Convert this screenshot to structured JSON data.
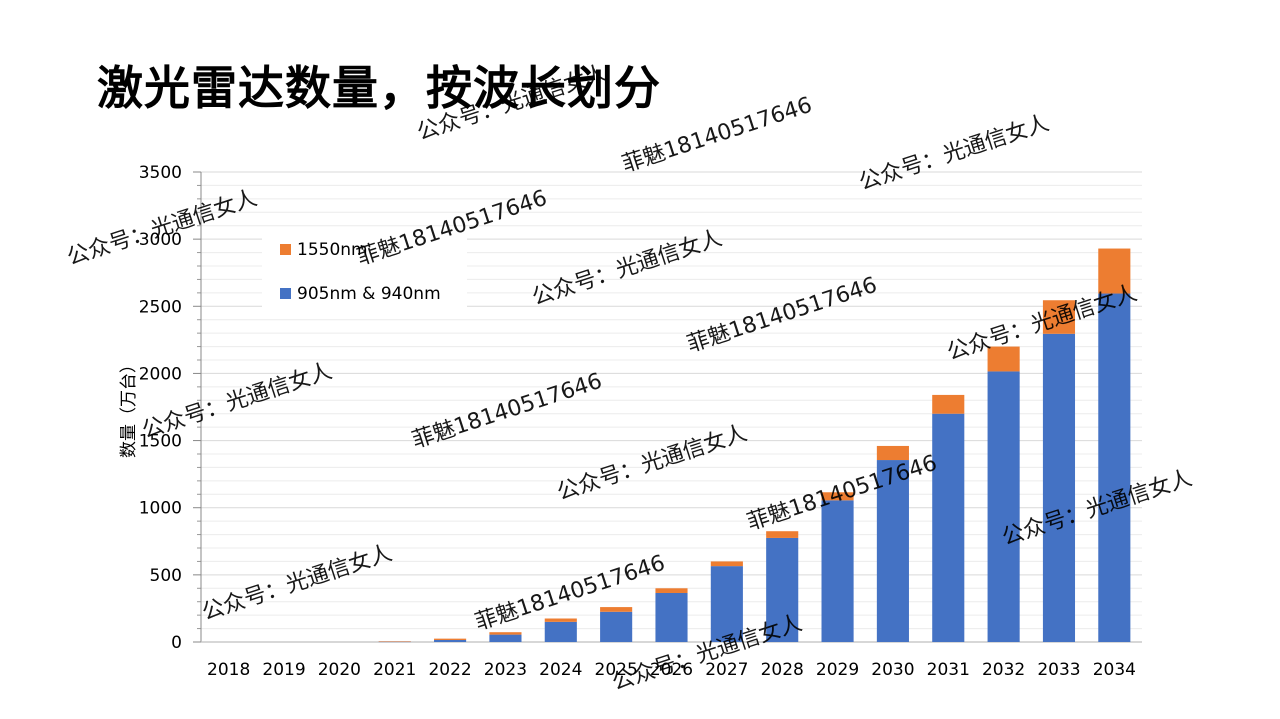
{
  "slide": {
    "title": "激光雷达数量，按波长划分"
  },
  "chart_data": {
    "type": "bar",
    "stacked": true,
    "title": "",
    "xlabel": "",
    "ylabel": "数量（万台）",
    "ylim": [
      0,
      3500
    ],
    "yticks": [
      0,
      500,
      1000,
      1500,
      2000,
      2500,
      3000,
      3500
    ],
    "grid": true,
    "legend_position": "top-left",
    "categories": [
      "2018",
      "2019",
      "2020",
      "2021",
      "2022",
      "2023",
      "2024",
      "2025",
      "2026",
      "2027",
      "2028",
      "2029",
      "2030",
      "2031",
      "2032",
      "2033",
      "2034"
    ],
    "series": [
      {
        "name": "905nm & 940nm",
        "color": "#4472C4",
        "values": [
          0,
          0,
          0,
          3,
          15,
          55,
          150,
          225,
          365,
          565,
          775,
          1055,
          1355,
          1700,
          2015,
          2295,
          2595
        ]
      },
      {
        "name": "1550nm",
        "color": "#ED7D31",
        "values": [
          0,
          0,
          0,
          2,
          10,
          18,
          25,
          35,
          35,
          35,
          50,
          60,
          105,
          140,
          185,
          250,
          335
        ]
      }
    ]
  },
  "watermarks": {
    "account": "公众号：光通信女人",
    "contact": "菲魅18140517646"
  }
}
